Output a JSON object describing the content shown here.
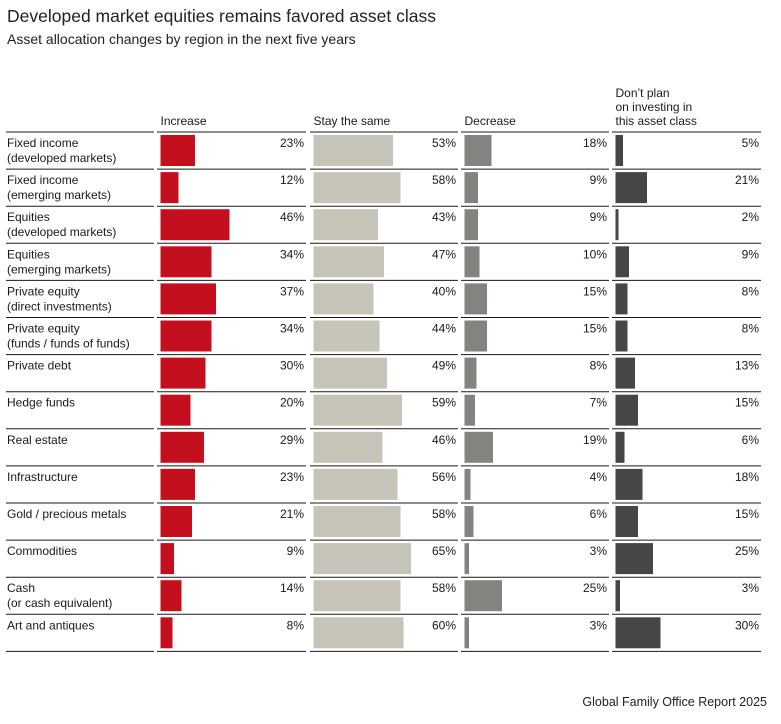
{
  "title": "Developed market equities remains favored asset class",
  "subtitle": "Asset allocation changes by region in the next five years",
  "source": "Global Family Office Report 2025",
  "colors": {
    "increase": "#c4101e",
    "stay": "#c6c3b8",
    "decrease": "#848380",
    "dont_plan": "#464646"
  },
  "chart_data": {
    "type": "bar",
    "layout": "small-multiple horizontal bars",
    "categories": [
      [
        "Fixed income",
        "(developed markets)"
      ],
      [
        "Fixed income",
        "(emerging markets)"
      ],
      [
        "Equities",
        "(developed markets)"
      ],
      [
        "Equities",
        "(emerging markets)"
      ],
      [
        "Private equity",
        "(direct investments)"
      ],
      [
        "Private equity",
        "(funds / funds of funds)"
      ],
      [
        "Private debt"
      ],
      [
        "Hedge funds"
      ],
      [
        "Real estate"
      ],
      [
        "Infrastructure"
      ],
      [
        "Gold / precious metals"
      ],
      [
        "Commodities"
      ],
      [
        "Cash",
        "(or cash equivalent)"
      ],
      [
        "Art and antiques"
      ]
    ],
    "series": [
      {
        "name": "Increase",
        "header": [
          "Increase"
        ],
        "color_key": "increase",
        "values": [
          23,
          12,
          46,
          34,
          37,
          34,
          30,
          20,
          29,
          23,
          21,
          9,
          14,
          8
        ]
      },
      {
        "name": "Stay the same",
        "header": [
          "Stay the same"
        ],
        "color_key": "stay",
        "values": [
          53,
          58,
          43,
          47,
          40,
          44,
          49,
          59,
          46,
          56,
          58,
          65,
          58,
          60
        ]
      },
      {
        "name": "Decrease",
        "header": [
          "Decrease"
        ],
        "color_key": "decrease",
        "values": [
          18,
          9,
          9,
          10,
          15,
          15,
          8,
          7,
          19,
          4,
          6,
          3,
          25,
          3
        ]
      },
      {
        "name": "Don’t plan on investing in this asset class",
        "header": [
          "Don’t plan",
          "on investing in",
          "this asset class"
        ],
        "color_key": "dont_plan",
        "values": [
          5,
          21,
          2,
          9,
          8,
          8,
          13,
          15,
          6,
          18,
          15,
          25,
          3,
          30
        ]
      }
    ],
    "value_suffix": "%",
    "xlim": [
      0,
      100
    ]
  }
}
